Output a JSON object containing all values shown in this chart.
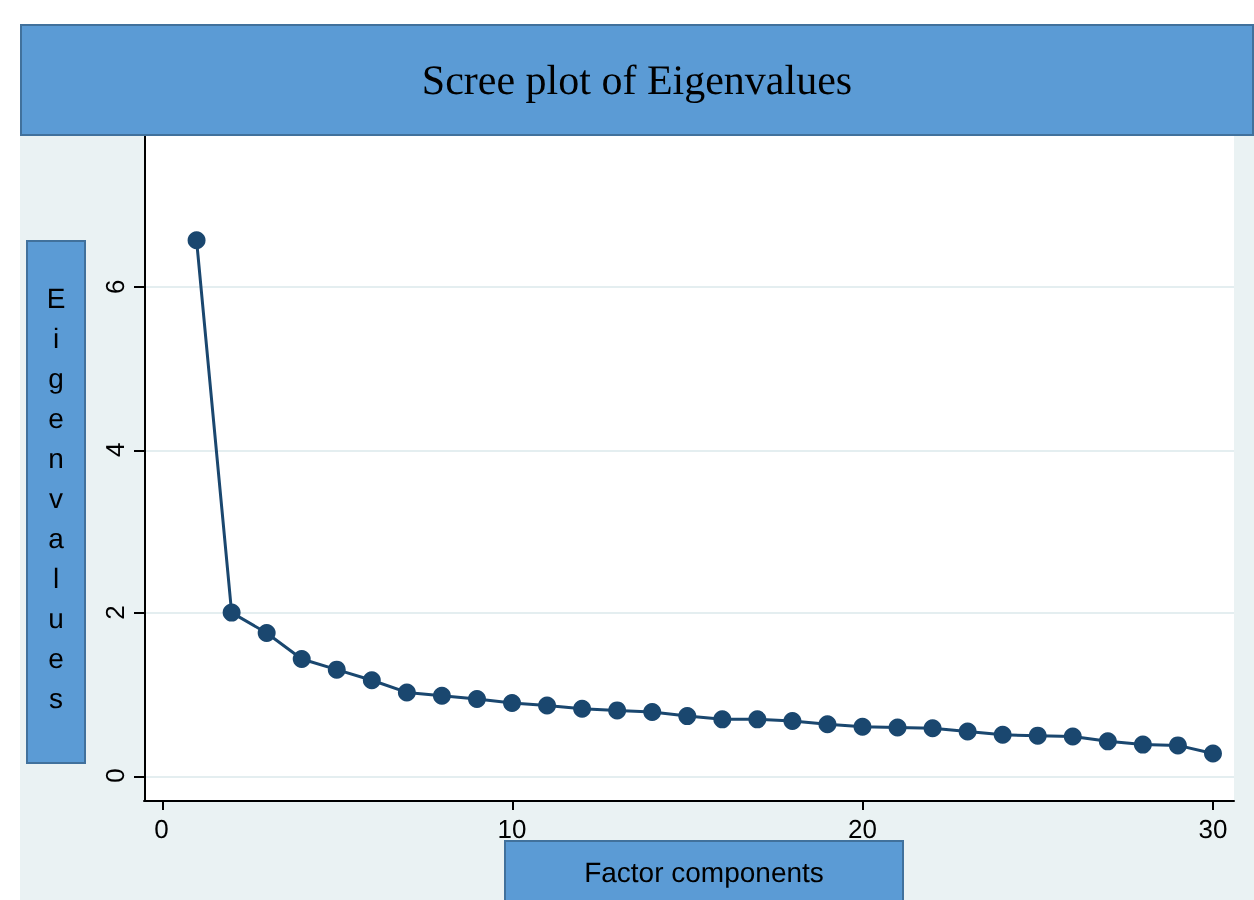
{
  "chart_data": {
    "type": "line",
    "title": "Scree plot of Eigenvalues",
    "xlabel": "Factor components",
    "ylabel": "Eigenvalues",
    "x": [
      1,
      2,
      3,
      4,
      5,
      6,
      7,
      8,
      9,
      10,
      11,
      12,
      13,
      14,
      15,
      16,
      17,
      18,
      19,
      20,
      21,
      22,
      23,
      24,
      25,
      26,
      27,
      28,
      29,
      30
    ],
    "series": [
      {
        "color": "#1a476f",
        "values": [
          6.57,
          2.0,
          1.75,
          1.43,
          1.3,
          1.17,
          1.02,
          0.98,
          0.94,
          0.89,
          0.86,
          0.82,
          0.8,
          0.78,
          0.73,
          0.69,
          0.69,
          0.67,
          0.63,
          0.6,
          0.59,
          0.58,
          0.54,
          0.5,
          0.49,
          0.48,
          0.42,
          0.38,
          0.37,
          0.27
        ]
      }
    ],
    "xlim": [
      -0.5,
      30.6
    ],
    "xticks": [
      0,
      10,
      20,
      30
    ],
    "ylim": [
      -0.3,
      7.85
    ],
    "yticks": [
      0,
      2,
      4,
      6
    ],
    "grid": "y",
    "marker": "circle",
    "line_style": "solid"
  }
}
